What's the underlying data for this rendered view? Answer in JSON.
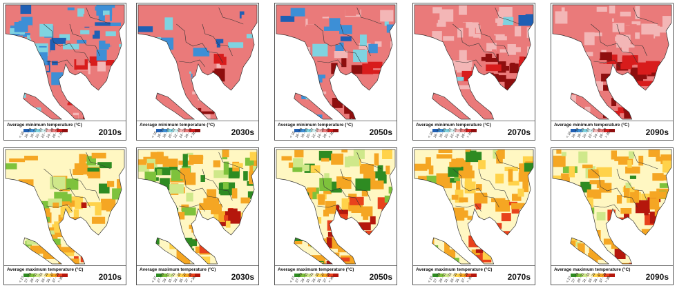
{
  "legends": {
    "min_title": "Average minimum temperature (°C)",
    "max_title": "Average maximum temperature (°C)"
  },
  "decades": [
    "2010s",
    "2030s",
    "2050s",
    "2070s",
    "2090s"
  ],
  "min_scale": {
    "ticks": [
      "< 16",
      "16 - 18",
      "18 - 20",
      "20 - 22",
      "22 - 24",
      "24 - 26",
      "26 - 28",
      "> 28"
    ],
    "colors": [
      "#1f5fb4",
      "#3d8fd6",
      "#7fd3e0",
      "#cfeff0",
      "#f3b6b6",
      "#ea7a7a",
      "#d81c1c",
      "#8e0e0e"
    ]
  },
  "max_scale": {
    "ticks": [
      "< 27",
      "27 - 29",
      "29 - 31",
      "31 - 33",
      "33 - 35",
      "35 - 37",
      "37 - 39",
      "> 39"
    ],
    "colors": [
      "#2e8b22",
      "#7ec23c",
      "#cfe88a",
      "#fff7c2",
      "#ffd24a",
      "#f5a623",
      "#e8421c",
      "#b5170c"
    ]
  },
  "rows": [
    {
      "variable": "minimum",
      "panels": [
        {
          "decade": "2010s",
          "cold_share": 0.35,
          "hot_share": 0.18
        },
        {
          "decade": "2030s",
          "cold_share": 0.28,
          "hot_share": 0.25
        },
        {
          "decade": "2050s",
          "cold_share": 0.18,
          "hot_share": 0.38
        },
        {
          "decade": "2070s",
          "cold_share": 0.06,
          "hot_share": 0.6
        },
        {
          "decade": "2090s",
          "cold_share": 0.0,
          "hot_share": 0.72
        }
      ]
    },
    {
      "variable": "maximum",
      "panels": [
        {
          "decade": "2010s",
          "cold_share": 0.3,
          "hot_share": 0.1
        },
        {
          "decade": "2030s",
          "cold_share": 0.25,
          "hot_share": 0.15
        },
        {
          "decade": "2050s",
          "cold_share": 0.2,
          "hot_share": 0.22
        },
        {
          "decade": "2070s",
          "cold_share": 0.12,
          "hot_share": 0.32
        },
        {
          "decade": "2090s",
          "cold_share": 0.1,
          "hot_share": 0.42
        }
      ]
    }
  ]
}
